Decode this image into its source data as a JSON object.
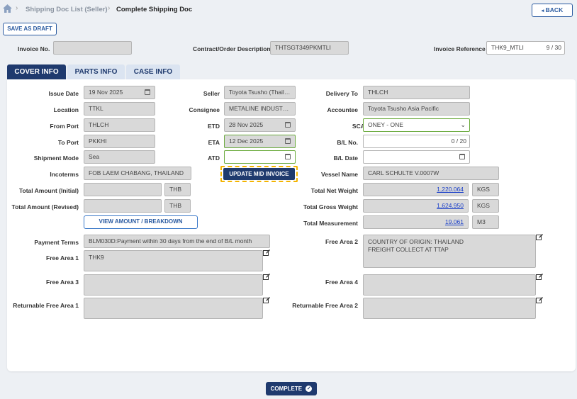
{
  "breadcrumb": {
    "item1": "Shipping Doc List (Seller)",
    "current": "Complete Shipping Doc"
  },
  "back_label": "BACK",
  "save_draft_label": "SAVE AS DRAFT",
  "header": {
    "invoice_no_label": "Invoice No.",
    "invoice_no": "",
    "contract_label": "Contract/Order Description",
    "contract": "THTSGT349PKMTLI",
    "invoice_ref_label": "Invoice Reference",
    "invoice_ref": "THK9_MTLI",
    "invoice_ref_count": "9 / 30"
  },
  "tabs": {
    "cover": "COVER INFO",
    "parts": "PARTS INFO",
    "case": "CASE INFO"
  },
  "form": {
    "issue_date_label": "Issue Date",
    "issue_date": "19 Nov 2025",
    "location_label": "Location",
    "location": "TTKL",
    "from_port_label": "From Port",
    "from_port": "THLCH",
    "to_port_label": "To Port",
    "to_port": "PKKHI",
    "shipment_mode_label": "Shipment Mode",
    "shipment_mode": "Sea",
    "incoterms_label": "Incoterms",
    "incoterms": "FOB LAEM CHABANG, THAILAND",
    "total_initial_label": "Total Amount (Initial)",
    "total_initial_unit": "THB",
    "total_revised_label": "Total Amount (Revised)",
    "total_revised_unit": "THB",
    "view_amount_label": "VIEW AMOUNT / BREAKDOWN",
    "seller_label": "Seller",
    "seller": "Toyota Tsusho (Thailand) Co., Ltd.",
    "consignee_label": "Consignee",
    "consignee": "METALINE INDUSTRIES",
    "etd_label": "ETD",
    "etd": "28 Nov 2025",
    "eta_label": "ETA",
    "eta": "12 Dec 2025",
    "atd_label": "ATD",
    "atd": "",
    "update_mid_label": "UPDATE MID INVOICE",
    "delivery_to_label": "Delivery To",
    "delivery_to": "THLCH",
    "accountee_label": "Accountee",
    "accountee": "Toyota Tsusho Asia Pacific",
    "scac_label": "SCAC",
    "scac": "ONEY - ONE",
    "bl_no_label": "B/L No.",
    "bl_no_count": "0 / 20",
    "bl_date_label": "B/L Date",
    "vessel_label": "Vessel Name",
    "vessel": "CARL SCHULTE V.0007W",
    "net_weight_label": "Total Net Weight",
    "net_weight": "1,220.064",
    "net_weight_unit": "KGS",
    "gross_weight_label": "Total Gross Weight",
    "gross_weight": "1,624.950",
    "gross_weight_unit": "KGS",
    "measurement_label": "Total Measurement",
    "measurement": "19.061",
    "measurement_unit": "M3",
    "payment_terms_label": "Payment Terms",
    "payment_terms": "BLM030D:Payment within 30 days from the end of B/L month",
    "free1_label": "Free Area 1",
    "free1": "THK9",
    "free2_label": "Free Area 2",
    "free2": "COUNTRY OF ORIGIN: THAILAND\nFREIGHT COLLECT AT TTAP",
    "free3_label": "Free Area 3",
    "free3": "",
    "free4_label": "Free Area 4",
    "free4": "",
    "ret1_label": "Returnable Free Area 1",
    "ret1": "",
    "ret2_label": "Returnable Free Area 2",
    "ret2": ""
  },
  "complete_label": "COMPLETE",
  "colors": {
    "navy": "#1f3a6e",
    "tab_inactive": "#dbe4f1",
    "green_border": "#6aaa3c",
    "highlight": "#f4b400",
    "link": "#1a3fc9"
  }
}
